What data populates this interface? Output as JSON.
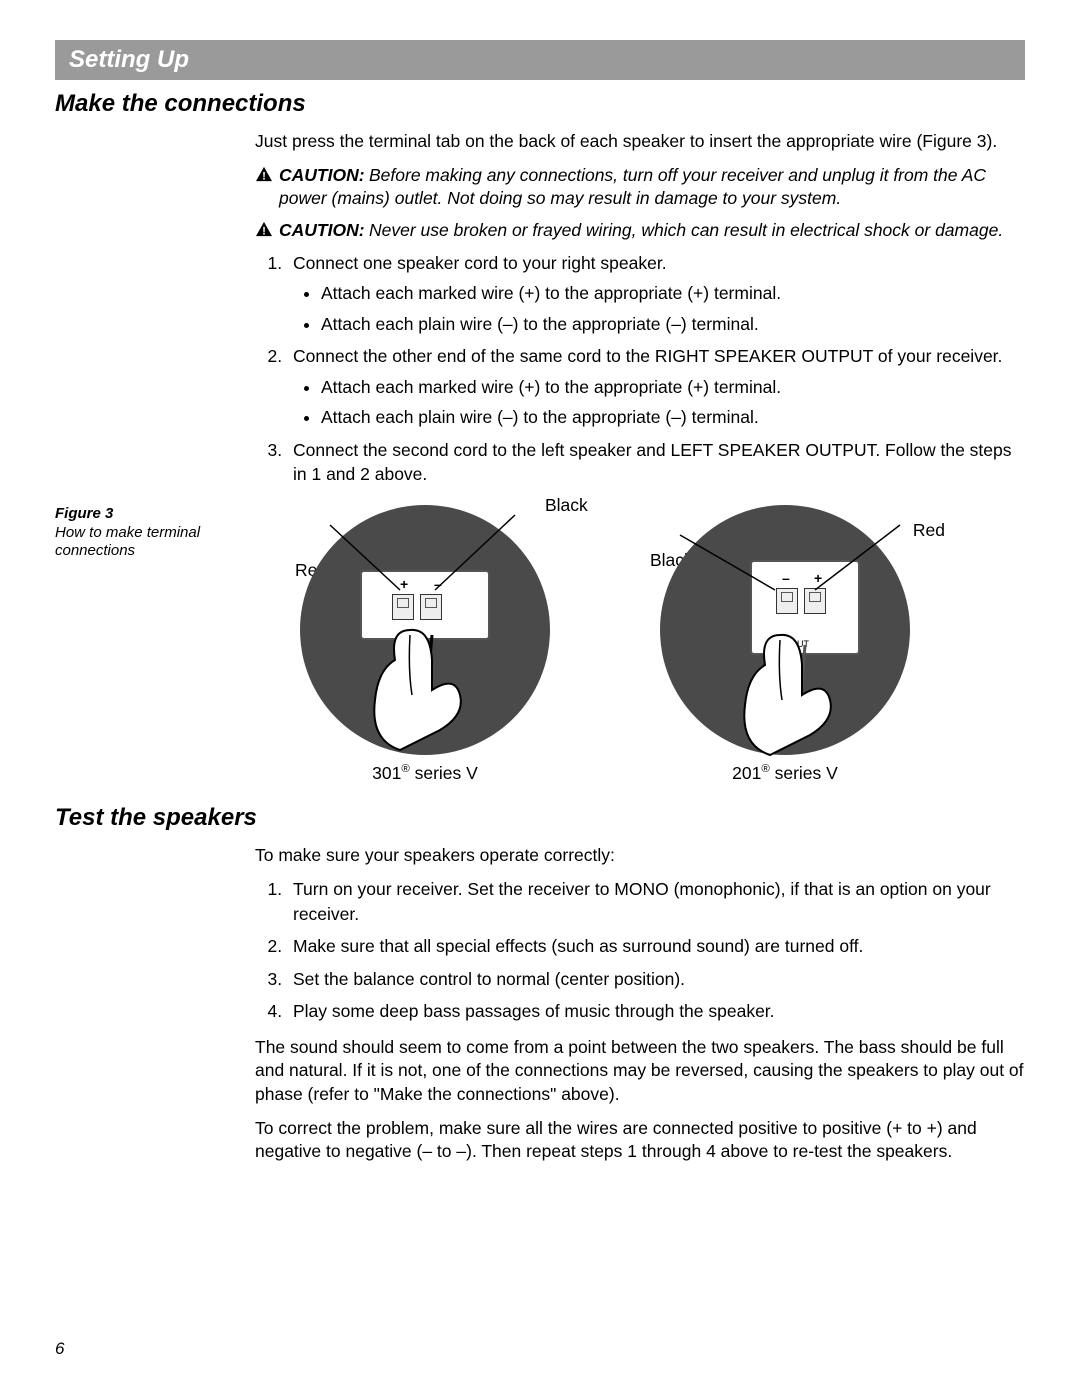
{
  "banner": {
    "title": "Setting Up"
  },
  "section1": {
    "heading": "Make the connections",
    "intro": "Just press the terminal tab on the back of each speaker to insert the appropriate wire (Figure 3).",
    "caution1": {
      "label": "CAUTION:",
      "text": "Before making any connections, turn off your receiver and unplug it from the AC power (mains) outlet. Not doing so may result in damage to your system."
    },
    "caution2": {
      "label": "CAUTION:",
      "text": "Never use broken or frayed wiring, which can result in electrical shock or damage."
    },
    "steps": [
      {
        "text": "Connect one speaker cord to your right speaker.",
        "bullets": [
          "Attach each marked wire (+) to the appropriate (+) terminal.",
          "Attach each plain wire (–) to the appropriate (–) terminal."
        ]
      },
      {
        "text": "Connect the other end of the same cord to the RIGHT SPEAKER OUTPUT of your receiver.",
        "bullets": [
          "Attach each marked wire (+) to the appropriate (+) terminal.",
          "Attach each plain wire (–) to the appropriate (–) terminal."
        ]
      },
      {
        "text": "Connect the second cord to the left speaker and LEFT SPEAKER OUTPUT. Follow the steps in 1 and 2 above.",
        "bullets": []
      }
    ]
  },
  "figure": {
    "label": "Figure 3",
    "caption": "How to make terminal connections",
    "left": {
      "caption": "301® series V",
      "labels": {
        "top": "Black",
        "left": "Red"
      },
      "signs": {
        "left": "+",
        "right": "–"
      }
    },
    "right": {
      "caption": "201® series V",
      "labels": {
        "topRight": "Red",
        "midLeft": "Black",
        "inner": "INPUT"
      },
      "signs": {
        "left": "–",
        "right": "+"
      }
    }
  },
  "section2": {
    "heading": "Test the speakers",
    "intro": "To make sure your speakers operate correctly:",
    "steps": [
      "Turn on your receiver. Set the receiver to MONO (monophonic), if that is an option on your receiver.",
      "Make sure that all special effects (such as surround sound) are turned off.",
      "Set the balance control to normal (center position).",
      "Play some deep bass passages of music through the speaker."
    ],
    "para1": "The sound should seem to come from a point between the two speakers. The bass should be full and natural. If it is not, one of the connections may be reversed, causing the speakers to play out of phase (refer to \"Make the connections\" above).",
    "para2": "To correct the problem, make sure all the wires are connected positive to positive (+ to +) and negative to negative (– to –). Then repeat steps 1 through 4 above to re-test the speakers."
  },
  "pageNumber": "6",
  "colors": {
    "banner_bg": "#9a9a9a",
    "banner_text": "#ffffff",
    "circle_fill": "#4a4a4a",
    "text": "#000000"
  }
}
